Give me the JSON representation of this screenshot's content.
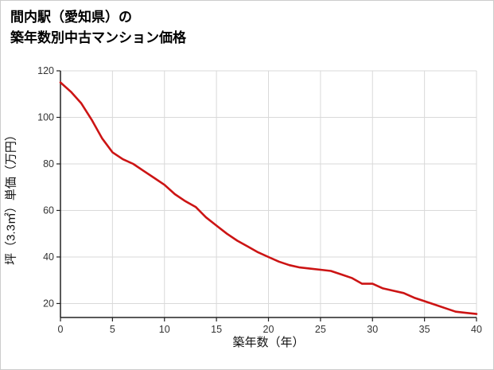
{
  "page": {
    "title_line1": "間内駅（愛知県）の",
    "title_line2": "築年数別中古マンション価格"
  },
  "chart_data": {
    "type": "line",
    "title": "間内駅（愛知県）の築年数別中古マンション価格",
    "xlabel": "築年数（年）",
    "ylabel": "坪（3.3㎡）単価（万円）",
    "x": [
      0,
      1,
      2,
      3,
      4,
      5,
      6,
      7,
      8,
      9,
      10,
      11,
      12,
      13,
      14,
      15,
      16,
      17,
      18,
      19,
      20,
      21,
      22,
      23,
      24,
      25,
      26,
      27,
      28,
      29,
      30,
      31,
      32,
      33,
      34,
      35,
      36,
      37,
      38,
      39,
      40
    ],
    "values": [
      115,
      111,
      106,
      99,
      91,
      85,
      82,
      80,
      77,
      74,
      71,
      67,
      64,
      61.5,
      57,
      53.5,
      50,
      47,
      44.5,
      42,
      40,
      38,
      36.5,
      35.5,
      35,
      34.5,
      34,
      32.5,
      31,
      28.5,
      28.5,
      26.5,
      25.5,
      24.5,
      22.5,
      21,
      19.5,
      18,
      16.5,
      16,
      15.5
    ],
    "xlim": [
      0,
      40
    ],
    "ylim": [
      14,
      120
    ],
    "xticks": [
      0,
      5,
      10,
      15,
      20,
      25,
      30,
      35,
      40
    ],
    "yticks": [
      20,
      40,
      60,
      80,
      100,
      120
    ],
    "grid": true,
    "legend": "none",
    "line_color": "#cc1414",
    "grid_color": "#d9d9d9",
    "axis_color": "#222222"
  }
}
